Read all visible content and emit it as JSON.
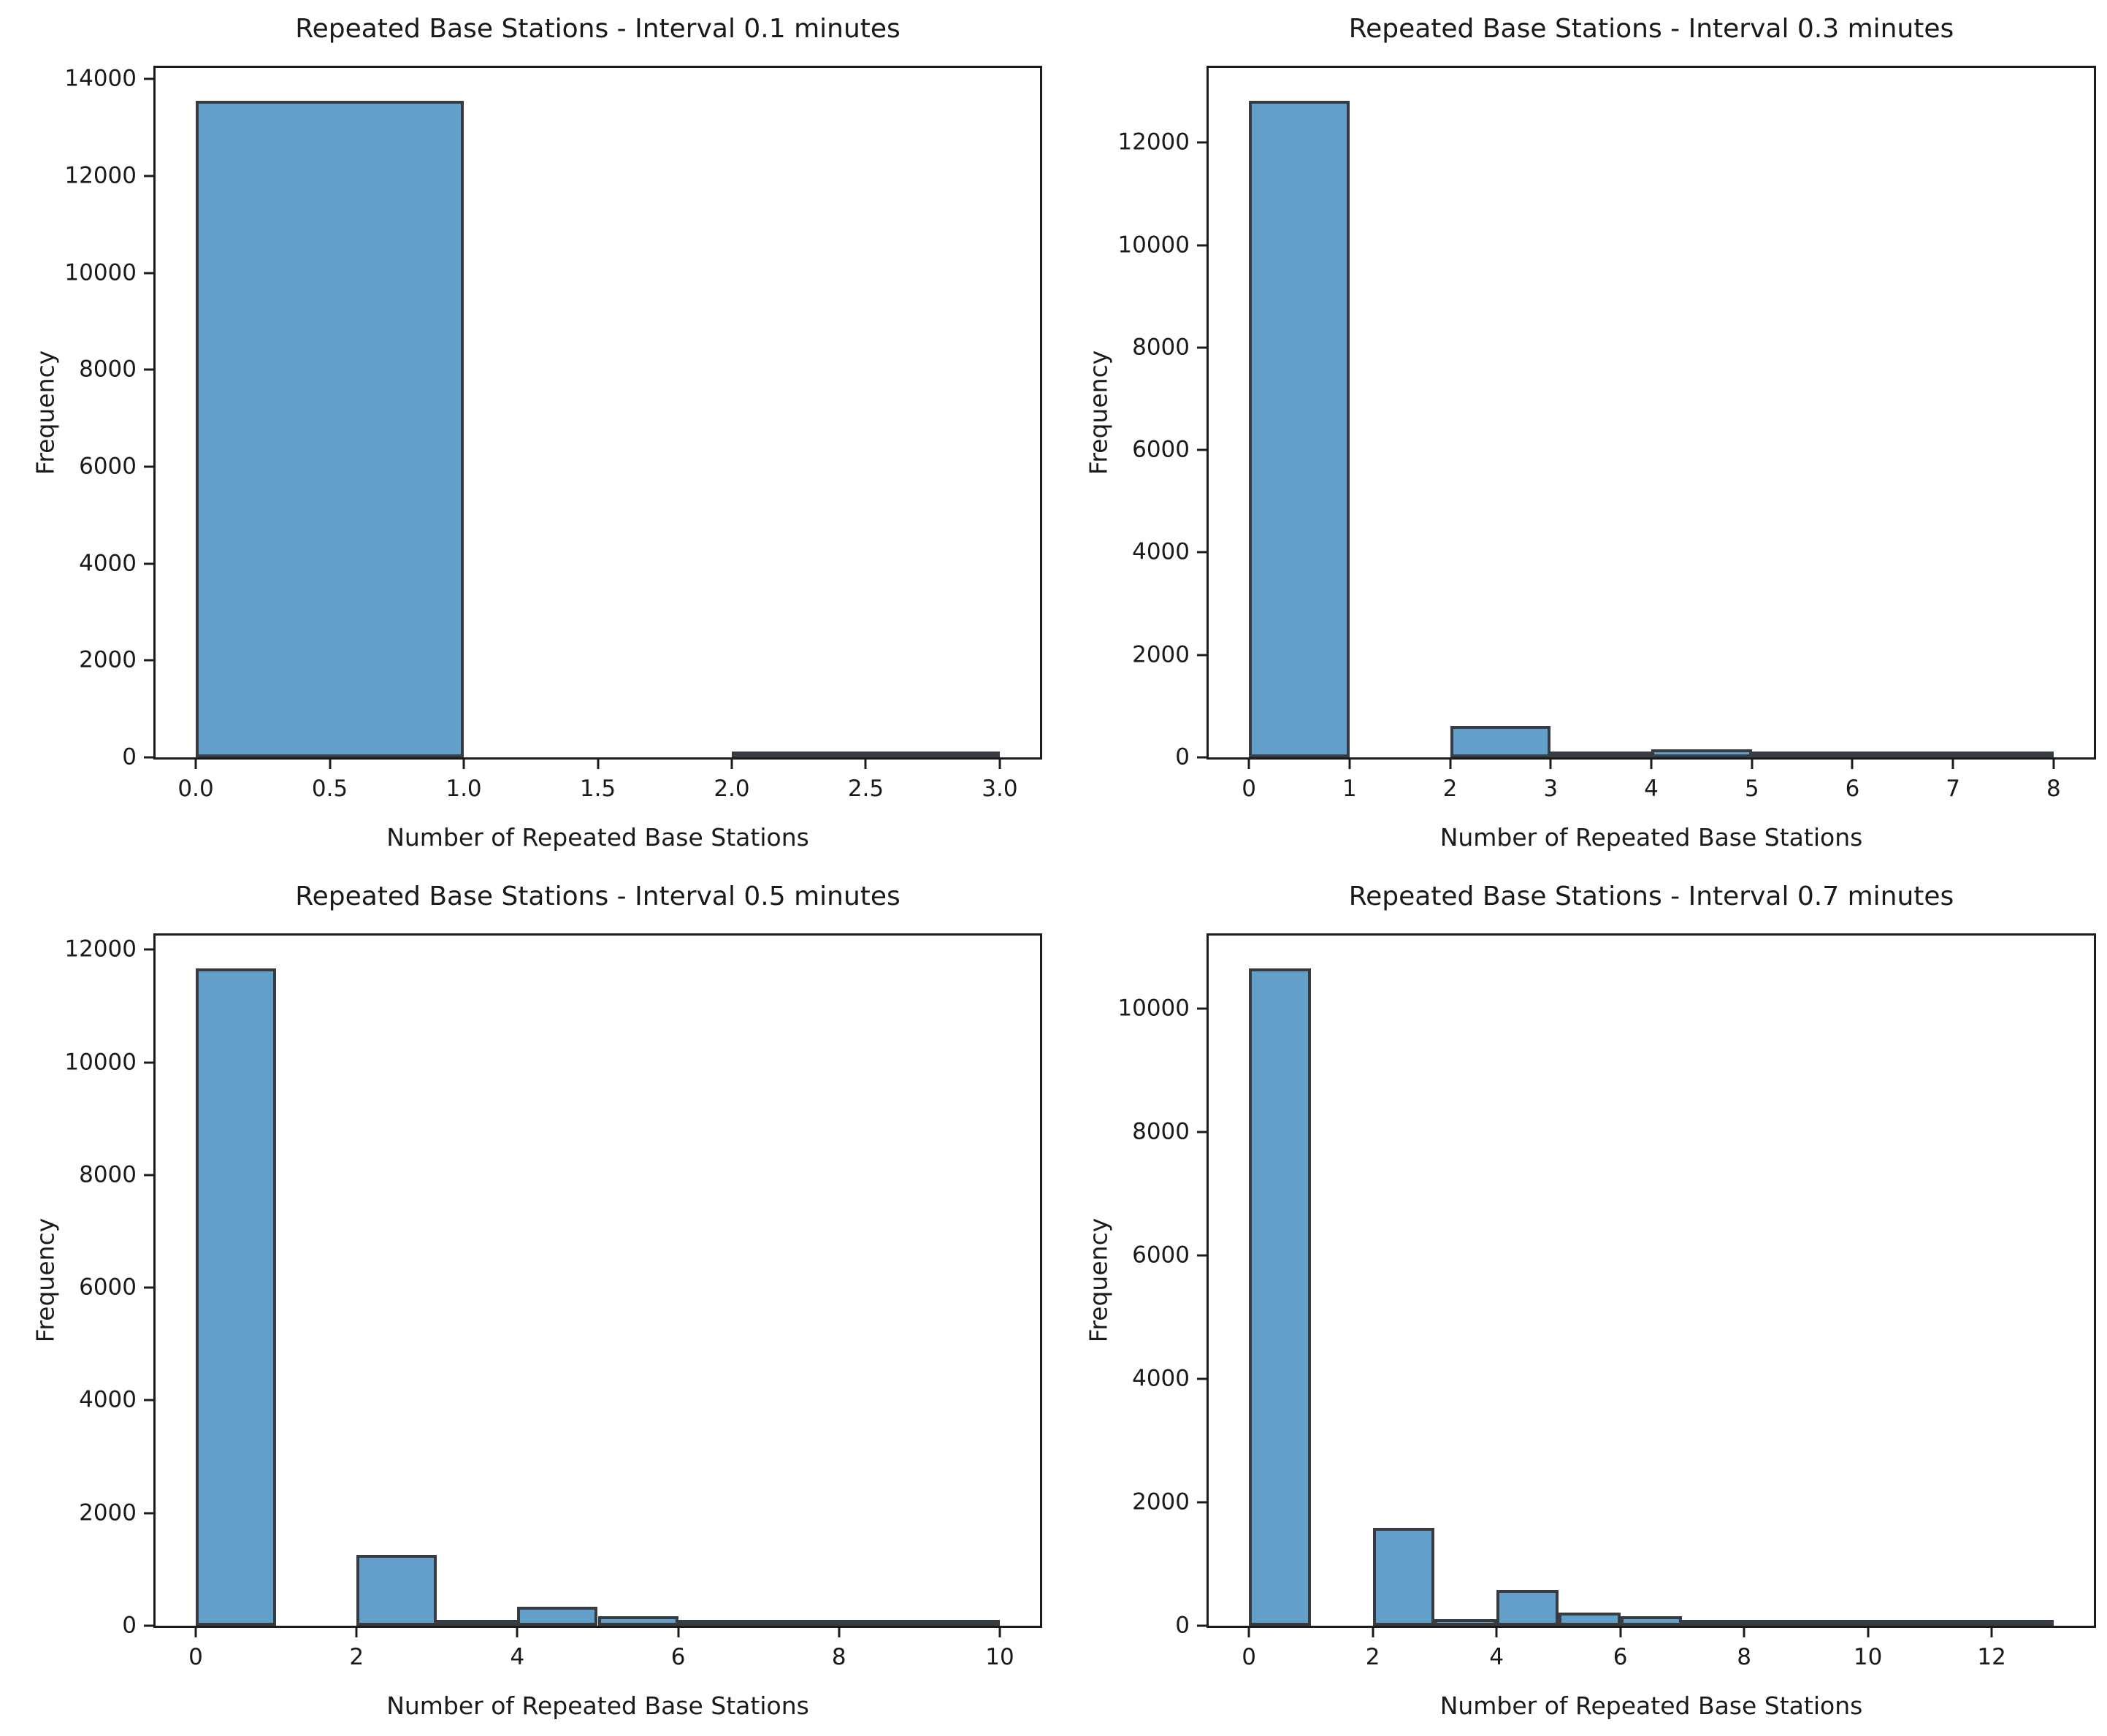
{
  "figure": {
    "background": "#ffffff",
    "bar_fill": "#62a0ca",
    "bar_edge": "#363c42",
    "axis_color": "#1c1c1c",
    "text_color": "#1a1a1a"
  },
  "chart_data": [
    {
      "type": "bar",
      "subtype": "histogram",
      "title": "Repeated Base Stations - Interval 0.1 minutes",
      "xlabel": "Number of Repeated Base Stations",
      "ylabel": "Frequency",
      "grid": false,
      "legend": null,
      "bins": {
        "start": 0,
        "width": 1
      },
      "values": [
        13550,
        0,
        40
      ],
      "xlim": [
        -0.15,
        3.15
      ],
      "ylim": [
        0,
        14230
      ],
      "x_ticks": {
        "values": [
          0,
          0.5,
          1,
          1.5,
          2,
          2.5,
          3
        ],
        "labels": [
          "0.0",
          "0.5",
          "1.0",
          "1.5",
          "2.0",
          "2.5",
          "3.0"
        ]
      },
      "y_ticks": {
        "values": [
          0,
          2000,
          4000,
          6000,
          8000,
          10000,
          12000,
          14000
        ],
        "labels": [
          "0",
          "2000",
          "4000",
          "6000",
          "8000",
          "10000",
          "12000",
          "14000"
        ]
      }
    },
    {
      "type": "bar",
      "subtype": "histogram",
      "title": "Repeated Base Stations - Interval 0.3 minutes",
      "xlabel": "Number of Repeated Base Stations",
      "ylabel": "Frequency",
      "grid": false,
      "legend": null,
      "bins": {
        "start": 0,
        "width": 1
      },
      "values": [
        12820,
        0,
        610,
        35,
        150,
        45,
        10,
        20
      ],
      "xlim": [
        -0.4,
        8.4
      ],
      "ylim": [
        0,
        13460
      ],
      "x_ticks": {
        "values": [
          0,
          1,
          2,
          3,
          4,
          5,
          6,
          7,
          8
        ],
        "labels": [
          "0",
          "1",
          "2",
          "3",
          "4",
          "5",
          "6",
          "7",
          "8"
        ]
      },
      "y_ticks": {
        "values": [
          0,
          2000,
          4000,
          6000,
          8000,
          10000,
          12000
        ],
        "labels": [
          "0",
          "2000",
          "4000",
          "6000",
          "8000",
          "10000",
          "12000"
        ]
      }
    },
    {
      "type": "bar",
      "subtype": "histogram",
      "title": "Repeated Base Stations - Interval 0.5 minutes",
      "xlabel": "Number of Repeated Base Stations",
      "ylabel": "Frequency",
      "grid": false,
      "legend": null,
      "bins": {
        "start": 0,
        "width": 1
      },
      "values": [
        11670,
        0,
        1260,
        55,
        340,
        165,
        55,
        60,
        15,
        5
      ],
      "xlim": [
        -0.5,
        10.5
      ],
      "ylim": [
        0,
        12250
      ],
      "x_ticks": {
        "values": [
          0,
          2,
          4,
          6,
          8,
          10
        ],
        "labels": [
          "0",
          "2",
          "4",
          "6",
          "8",
          "10"
        ]
      },
      "y_ticks": {
        "values": [
          0,
          2000,
          4000,
          6000,
          8000,
          10000,
          12000
        ],
        "labels": [
          "0",
          "2000",
          "4000",
          "6000",
          "8000",
          "10000",
          "12000"
        ]
      }
    },
    {
      "type": "bar",
      "subtype": "histogram",
      "title": "Repeated Base Stations - Interval 0.7 minutes",
      "xlabel": "Number of Repeated Base Stations",
      "ylabel": "Frequency",
      "grid": false,
      "legend": null,
      "bins": {
        "start": 0,
        "width": 1
      },
      "values": [
        10650,
        0,
        1580,
        105,
        580,
        215,
        150,
        55,
        55,
        30,
        30,
        12,
        5
      ],
      "xlim": [
        -0.65,
        13.65
      ],
      "ylim": [
        0,
        11180
      ],
      "x_ticks": {
        "values": [
          0,
          2,
          4,
          6,
          8,
          10,
          12
        ],
        "labels": [
          "0",
          "2",
          "4",
          "6",
          "8",
          "10",
          "12"
        ]
      },
      "y_ticks": {
        "values": [
          0,
          2000,
          4000,
          6000,
          8000,
          10000
        ],
        "labels": [
          "0",
          "2000",
          "4000",
          "6000",
          "8000",
          "10000"
        ]
      }
    }
  ]
}
